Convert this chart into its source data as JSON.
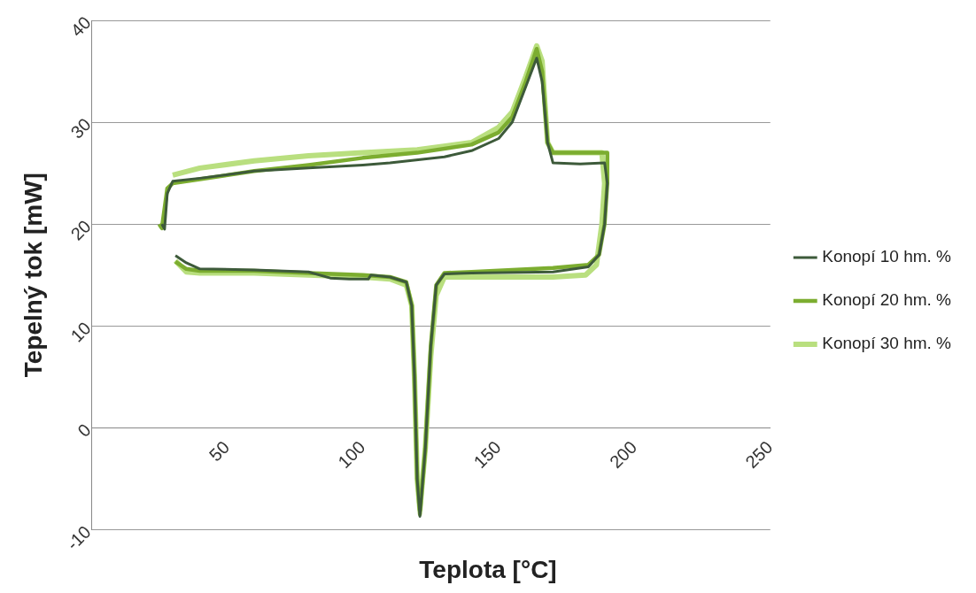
{
  "chart_data": {
    "type": "line",
    "xlabel": "Teplota [°C]",
    "ylabel": "Tepelný tok [mW]",
    "xlim": [
      0,
      250
    ],
    "xticks": [
      50,
      100,
      150,
      200,
      250
    ],
    "ylim": [
      -10,
      40
    ],
    "yticks": [
      -10,
      0,
      10,
      20,
      30,
      40
    ],
    "grid": "y",
    "legend": "right",
    "marker": "none",
    "line_style": "solid",
    "series": [
      {
        "name": "Konopí 10 hm. %",
        "color": "#3d5a3a",
        "x": [
          26,
          27,
          28,
          30,
          40,
          60,
          80,
          100,
          110,
          130,
          140,
          150,
          155,
          160,
          164,
          166,
          168,
          170,
          180,
          189,
          190,
          189,
          187,
          183,
          170,
          140,
          130,
          127,
          125,
          123,
          121,
          120,
          119,
          118,
          116,
          110,
          103,
          102,
          95,
          88,
          80,
          60,
          40,
          35,
          31
        ],
        "values": [
          20,
          19.5,
          23,
          24.2,
          24.5,
          25.2,
          25.5,
          25.8,
          26,
          26.6,
          27.2,
          28.4,
          30,
          33.5,
          36.3,
          34,
          28,
          26,
          25.9,
          26,
          24,
          20,
          17,
          15.8,
          15.3,
          15.2,
          15.1,
          14,
          8,
          -2,
          -8.7,
          -5,
          5,
          12,
          14.3,
          14.8,
          15,
          14.6,
          14.6,
          14.7,
          15.3,
          15.5,
          15.6,
          16.2,
          16.9
        ]
      },
      {
        "name": "Konopí 20 hm. %",
        "color": "#7cad30",
        "x": [
          25,
          26,
          28,
          30,
          40,
          60,
          80,
          100,
          120,
          140,
          150,
          155,
          160,
          164,
          166,
          168,
          170,
          190,
          190,
          189,
          187,
          183,
          170,
          140,
          130,
          127,
          125,
          123,
          121,
          120,
          119,
          118,
          116,
          110,
          100,
          80,
          60,
          40,
          35,
          31
        ],
        "values": [
          20,
          19.6,
          23.5,
          24,
          24.4,
          25.2,
          25.8,
          26.5,
          27,
          27.8,
          29,
          30.5,
          34,
          37.2,
          35,
          28,
          27,
          27,
          24,
          20,
          17,
          16,
          15.7,
          15.3,
          15.2,
          14,
          8,
          -2,
          -8.5,
          -5,
          5,
          12,
          14.3,
          14.8,
          15,
          15.2,
          15.4,
          15.4,
          15.6,
          16.3
        ]
      },
      {
        "name": "Konopí 30 hm. %",
        "color": "#b9df7f",
        "x": [
          30,
          40,
          60,
          80,
          100,
          120,
          140,
          150,
          155,
          160,
          164,
          166,
          168,
          170,
          188,
          189,
          188,
          186,
          182,
          170,
          140,
          130,
          127,
          125,
          123,
          121,
          120,
          119,
          118,
          116,
          110,
          100,
          80,
          60,
          40,
          35,
          31
        ],
        "values": [
          24.8,
          25.5,
          26.2,
          26.7,
          27,
          27.3,
          28,
          29.5,
          31,
          34.5,
          37.5,
          36,
          28,
          27,
          27,
          24,
          20,
          16,
          15,
          14.8,
          14.8,
          14.8,
          13,
          7,
          -2,
          -8,
          -5,
          5,
          12,
          14,
          14.6,
          14.8,
          15,
          15.2,
          15.2,
          15.3,
          16.4
        ]
      }
    ]
  }
}
